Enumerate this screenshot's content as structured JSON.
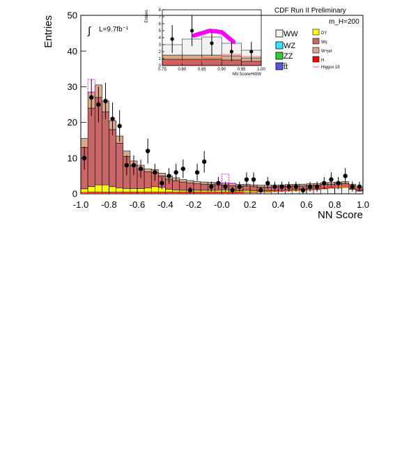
{
  "header": {
    "experiment": "CDF Run II Preliminary",
    "mass_label": "m_H=200"
  },
  "lumi": {
    "label": "L=9.7fb⁻¹"
  },
  "legend": [
    {
      "label": "WW",
      "color": "#f2f2f2"
    },
    {
      "label": "WZ",
      "color": "#33e6ff"
    },
    {
      "label": "ZZ",
      "color": "#33cc33"
    },
    {
      "label": "t̅t",
      "color": "#5555dd"
    },
    {
      "label": "DY",
      "color": "#ffff00"
    },
    {
      "label": "Wγ",
      "color": "#cc6666"
    },
    {
      "label": "W+jet",
      "color": "#d9a98a"
    },
    {
      "label": "H",
      "color": "#ff0000"
    },
    {
      "label": "Higgsx 15",
      "color": "#ff5555"
    }
  ],
  "chart_data": [
    {
      "type": "bar",
      "subtype": "stacked-histogram",
      "xlabel": "NN Score",
      "ylabel": "Entries",
      "xlim": [
        -1.0,
        1.0
      ],
      "ylim": [
        0,
        50
      ],
      "xticks": [
        "-1.0",
        "-0.8",
        "-0.6",
        "-0.4",
        "-0.2",
        "-0.0",
        "0.2",
        "0.4",
        "0.6",
        "0.8",
        "1.0"
      ],
      "yticks": [
        "0",
        "10",
        "20",
        "30",
        "40",
        "50"
      ],
      "bin_edges": [
        -1.0,
        -0.95,
        -0.9,
        -0.85,
        -0.8,
        -0.75,
        -0.7,
        -0.65,
        -0.6,
        -0.55,
        -0.5,
        -0.45,
        -0.4,
        -0.35,
        -0.3,
        -0.25,
        -0.2,
        -0.15,
        -0.1,
        -0.05,
        0.0,
        0.05,
        0.1,
        0.15,
        0.2,
        0.25,
        0.3,
        0.35,
        0.4,
        0.45,
        0.5,
        0.55,
        0.6,
        0.65,
        0.7,
        0.75,
        0.8,
        0.85,
        0.9,
        0.95,
        1.0
      ],
      "series": [
        {
          "name": "WW",
          "values": [
            0.4,
            0.5,
            0.5,
            0.5,
            0.5,
            0.5,
            0.5,
            0.5,
            0.5,
            0.5,
            0.5,
            0.5,
            0.5,
            0.5,
            0.5,
            0.5,
            0.5,
            0.5,
            0.5,
            0.5,
            0.5,
            0.5,
            0.5,
            0.5,
            0.5,
            0.5,
            0.6,
            0.6,
            0.7,
            0.8,
            0.9,
            1.0,
            1.1,
            1.2,
            1.4,
            1.6,
            1.7,
            1.8,
            1.3,
            0.8
          ]
        },
        {
          "name": "DY",
          "values": [
            1.0,
            1.5,
            2.0,
            2.0,
            1.5,
            1.2,
            1.0,
            1.0,
            1.0,
            1.2,
            1.5,
            1.3,
            0.8,
            0.6,
            0.5,
            0.5,
            0.5,
            0.5,
            0.5,
            0.5,
            0.6,
            0.5,
            0.4,
            0.5,
            0.4,
            0.3,
            0.3,
            0.3,
            0.3,
            0.3,
            0.3,
            0.3,
            0.3,
            0.3,
            0.3,
            0.3,
            0.3,
            0.3,
            0.2,
            0.2
          ]
        },
        {
          "name": "Wγ",
          "values": [
            11.6,
            22.0,
            24.5,
            20.5,
            16.0,
            12.5,
            9.0,
            6.5,
            5.5,
            4.5,
            4.0,
            3.2,
            2.8,
            2.6,
            2.3,
            2.0,
            1.8,
            1.7,
            1.6,
            1.5,
            1.4,
            1.3,
            1.2,
            1.2,
            1.1,
            1.1,
            1.0,
            1.0,
            1.0,
            1.0,
            1.0,
            0.9,
            0.9,
            0.9,
            0.9,
            0.8,
            0.8,
            0.8,
            0.8,
            0.6
          ]
        },
        {
          "name": "W+jet",
          "values": [
            2.5,
            4.5,
            3.5,
            3.0,
            2.5,
            2.0,
            1.5,
            1.2,
            1.0,
            0.8,
            0.8,
            0.8,
            0.9,
            0.8,
            0.7,
            0.7,
            0.6,
            0.6,
            0.6,
            0.6,
            0.5,
            0.6,
            0.5,
            0.5,
            0.5,
            0.5,
            0.5,
            0.5,
            0.5,
            0.5,
            0.5,
            0.5,
            0.5,
            0.5,
            0.5,
            0.5,
            0.5,
            0.5,
            0.4,
            0.4
          ]
        },
        {
          "name": "Higgsx 15",
          "values": [
            0.3,
            0.3,
            0.3,
            0.3,
            0.3,
            0.3,
            0.3,
            0.3,
            0.3,
            0.3,
            0.3,
            0.3,
            0.3,
            0.3,
            0.3,
            0.3,
            0.3,
            0.3,
            0.3,
            0.3,
            0.3,
            0.3,
            0.3,
            0.4,
            0.4,
            0.5,
            0.5,
            0.6,
            0.7,
            0.8,
            0.9,
            1.0,
            1.2,
            1.4,
            1.6,
            1.8,
            2.0,
            2.2,
            2.0,
            1.5
          ]
        }
      ],
      "prediction_band_top": [
        15.5,
        32.0,
        30.5,
        26.0,
        20.5,
        16.2,
        12.0,
        9.2,
        8.0,
        7.0,
        6.8,
        5.8,
        5.0,
        4.5,
        4.0,
        3.7,
        3.4,
        3.3,
        3.2,
        3.1,
        5.5,
        3.0,
        2.6,
        2.7,
        2.5,
        2.4,
        2.4,
        2.4,
        2.5,
        2.6,
        2.7,
        2.7,
        2.8,
        2.9,
        3.1,
        3.2,
        3.3,
        3.4,
        2.7,
        2.0
      ],
      "data": {
        "name": "Data",
        "x": [
          -0.975,
          -0.925,
          -0.875,
          -0.825,
          -0.775,
          -0.725,
          -0.675,
          -0.625,
          -0.575,
          -0.525,
          -0.475,
          -0.425,
          -0.375,
          -0.325,
          -0.275,
          -0.225,
          -0.175,
          -0.125,
          -0.075,
          -0.025,
          0.025,
          0.075,
          0.125,
          0.175,
          0.225,
          0.275,
          0.325,
          0.375,
          0.425,
          0.475,
          0.525,
          0.575,
          0.625,
          0.675,
          0.725,
          0.775,
          0.825,
          0.875,
          0.925,
          0.975
        ],
        "y": [
          10,
          27,
          25,
          26,
          21,
          19,
          8,
          8,
          7,
          12,
          6,
          3,
          5,
          6,
          7,
          1,
          6,
          9,
          2,
          3,
          2,
          1,
          2,
          4,
          4,
          1,
          3,
          2,
          2,
          2,
          2,
          1,
          2,
          2,
          3,
          4,
          3,
          5,
          2,
          2
        ],
        "err": [
          3.2,
          5.2,
          5.0,
          5.1,
          4.6,
          4.4,
          2.8,
          2.8,
          2.6,
          3.5,
          2.4,
          1.7,
          2.2,
          2.4,
          2.6,
          1.0,
          2.4,
          3.0,
          1.4,
          1.7,
          1.4,
          1.0,
          1.4,
          2.0,
          2.0,
          1.0,
          1.7,
          1.4,
          1.4,
          1.4,
          1.4,
          1.0,
          1.4,
          1.4,
          1.7,
          2.0,
          1.7,
          2.2,
          1.4,
          1.4
        ]
      }
    },
    {
      "type": "bar",
      "subtype": "stacked-histogram-inset",
      "xlabel": "NN ScoreHWW",
      "ylabel": "Entries",
      "xlim": [
        0.75,
        1.0
      ],
      "ylim": [
        0,
        8
      ],
      "xticks": [
        "0.75",
        "0.80",
        "0.85",
        "0.90",
        "0.95",
        "1.00"
      ],
      "yticks": [
        "0",
        "1",
        "2",
        "3",
        "4",
        "5",
        "6",
        "7",
        "8"
      ],
      "bin_edges": [
        0.75,
        0.8,
        0.85,
        0.9,
        0.95,
        1.0
      ],
      "series": [
        {
          "name": "Wγ",
          "values": [
            0.9,
            0.9,
            0.9,
            0.8,
            0.6
          ]
        },
        {
          "name": "W+jet",
          "values": [
            0.6,
            0.6,
            0.6,
            0.6,
            0.5
          ]
        },
        {
          "name": "WW",
          "values": [
            1.5,
            2.3,
            2.6,
            1.8,
            1.1
          ]
        }
      ],
      "prediction_band_top": [
        3.0,
        3.8,
        4.1,
        3.2,
        2.2
      ],
      "signal_band": {
        "x": [
          0.83,
          0.87,
          0.9,
          0.93
        ],
        "y": [
          4.3,
          5.0,
          4.8,
          3.4
        ]
      },
      "higgs_line": [
        0.3,
        0.7,
        1.1,
        1.6,
        1.3
      ],
      "data": {
        "name": "Data",
        "x": [
          0.775,
          0.825,
          0.875,
          0.925,
          0.975
        ],
        "y": [
          3.8,
          5.0,
          3.2,
          2.0,
          2.0
        ],
        "err": [
          2.0,
          2.2,
          1.8,
          1.4,
          1.4
        ]
      }
    }
  ]
}
